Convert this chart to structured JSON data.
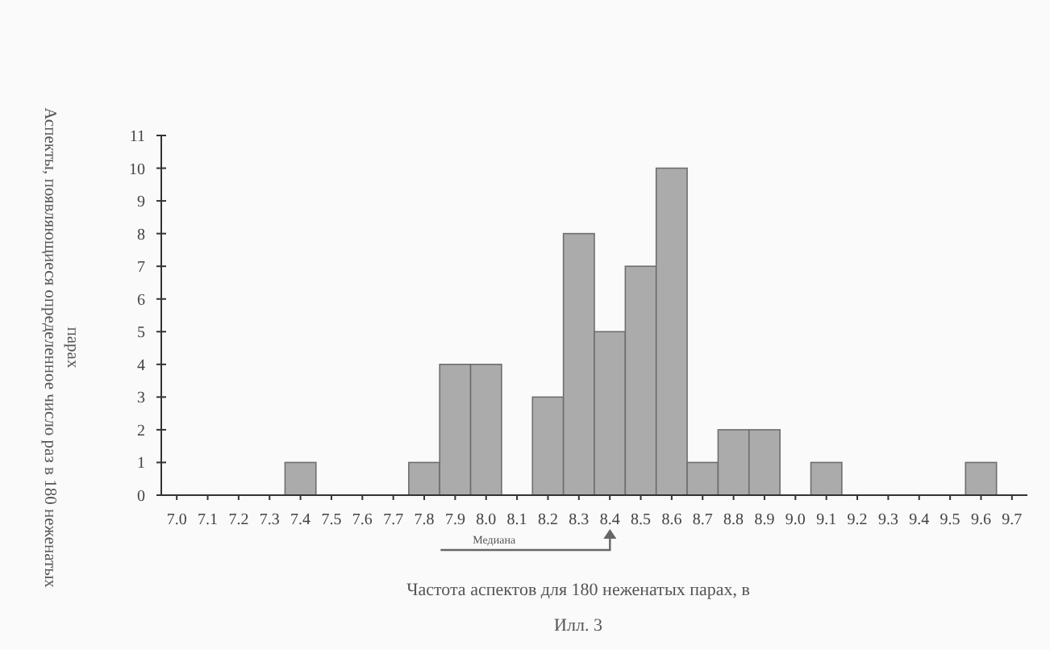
{
  "chart_data": {
    "type": "bar",
    "xlabel": "Частота аспектов для 180 неженатых парах, в",
    "ylabel": "Аспекты, появляющиеся определенное число раз в 180 неженатых парах",
    "categories": [
      "7.0",
      "7.1",
      "7.2",
      "7.3",
      "7.4",
      "7.5",
      "7.6",
      "7.7",
      "7.8",
      "7.9",
      "8.0",
      "8.1",
      "8.2",
      "8.3",
      "8.4",
      "8.5",
      "8.6",
      "8.7",
      "8.8",
      "8.9",
      "9.0",
      "9.1",
      "9.2",
      "9.3",
      "9.4",
      "9.5",
      "9.6",
      "9.7"
    ],
    "values": [
      0,
      0,
      0,
      0,
      1,
      0,
      0,
      0,
      1,
      4,
      4,
      0,
      3,
      8,
      5,
      7,
      10,
      1,
      2,
      2,
      0,
      1,
      0,
      0,
      0,
      0,
      1,
      0
    ],
    "color": "#ababab",
    "ylim": [
      0,
      11
    ],
    "yticks": [
      0,
      1,
      2,
      3,
      4,
      5,
      6,
      7,
      8,
      9,
      10,
      11
    ],
    "grid": false,
    "annotations": [
      "Медиана",
      "Илл. 3"
    ]
  }
}
